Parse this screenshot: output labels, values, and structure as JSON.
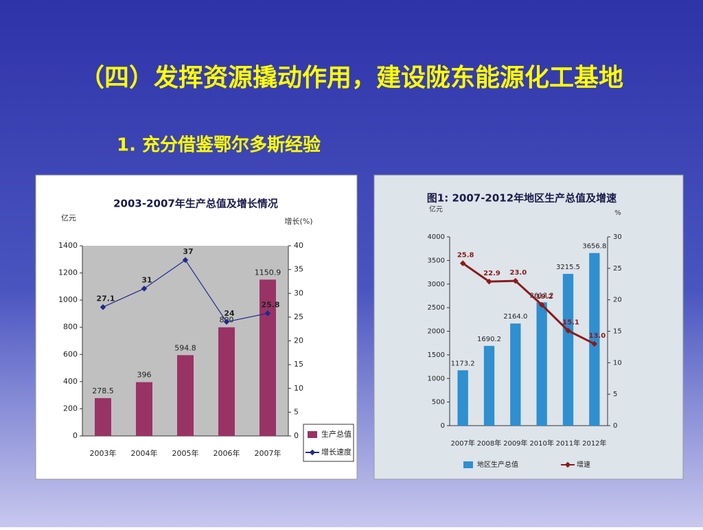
{
  "slide": {
    "title": "（四）发挥资源撬动作用，建设陇东能源化工基地",
    "subtitle": "1. 充分借鉴鄂尔多斯经验"
  },
  "chart_data": [
    {
      "type": "combo",
      "title": "2003-2007年生产总值及增长情况",
      "y_label": "亿元",
      "y2_label": "增长(%)",
      "categories": [
        "2003年",
        "2004年",
        "2005年",
        "2006年",
        "2007年"
      ],
      "series": [
        {
          "name": "生产总值",
          "type": "bar",
          "color": "#993366",
          "values": [
            278.5,
            396,
            594.8,
            800,
            1150.9
          ]
        },
        {
          "name": "增长速度",
          "type": "line",
          "axis": "y2",
          "color": "#1f2a8a",
          "values": [
            27.1,
            31,
            37,
            24,
            25.8
          ]
        }
      ],
      "ylim": [
        0,
        1400
      ],
      "yticks": [
        0,
        200,
        400,
        600,
        800,
        1000,
        1200,
        1400
      ],
      "y2lim": [
        0,
        40
      ],
      "y2ticks": [
        0,
        5,
        10,
        15,
        20,
        25,
        30,
        35,
        40
      ],
      "grid": false,
      "legend": "right",
      "plot_color": "#c0c0c0"
    },
    {
      "type": "combo",
      "title": "图1: 2007-2012年地区生产总值及增速",
      "y_label": "亿元",
      "y2_label": "%",
      "categories": [
        "2007年",
        "2008年",
        "2009年",
        "2010年",
        "2011年",
        "2012年"
      ],
      "series": [
        {
          "name": "地区生产总值",
          "type": "bar",
          "color": "#2f8fcf",
          "values": [
            1173.2,
            1690.2,
            2164.0,
            2613.2,
            3215.5,
            3656.8
          ],
          "value_labels": [
            "1173.2",
            "1690.2",
            "2164.0",
            "2613.2",
            "3215.5",
            "3656.8"
          ]
        },
        {
          "name": "增速",
          "type": "line",
          "axis": "y2",
          "color": "#8b1a1a",
          "values": [
            25.8,
            22.9,
            23.0,
            19.2,
            15.1,
            13.0
          ],
          "value_labels": [
            "25.8",
            "22.9",
            "23.0",
            "19.2",
            "15.1",
            "13.0"
          ]
        }
      ],
      "ylim": [
        0,
        4000
      ],
      "yticks": [
        0,
        500,
        1000,
        1500,
        2000,
        2500,
        3000,
        3500,
        4000
      ],
      "y2lim": [
        0,
        30
      ],
      "y2ticks": [
        0,
        5,
        10,
        15,
        20,
        25,
        30
      ],
      "grid": false,
      "legend": "bottom",
      "plot_color": "#dde4ea"
    }
  ]
}
